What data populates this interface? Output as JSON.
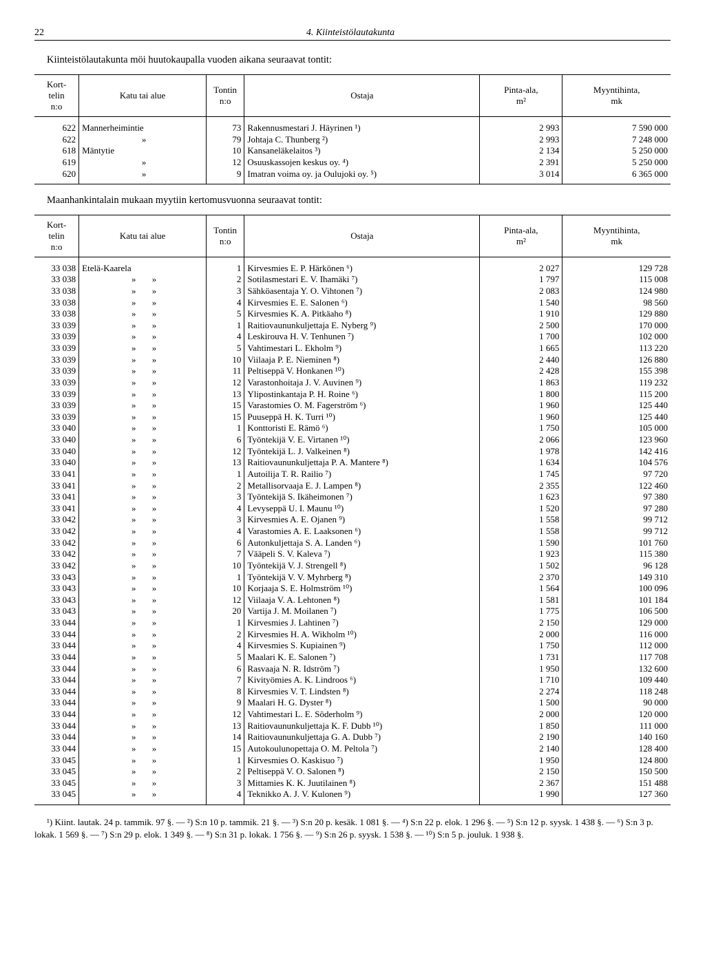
{
  "page_number": "22",
  "header_title": "4. Kiinteistölautakunta",
  "section1_intro": "Kiinteistölautakunta möi huutokaupalla vuoden aikana seuraavat tontit:",
  "table_headers": {
    "korttelin": "Kort-\ntelin\nn:o",
    "katu": "Katu tai alue",
    "tontin": "Tontin\nn:o",
    "ostaja": "Ostaja",
    "pinta": "Pinta-ala,\nm²",
    "hinta": "Myyntihinta,\nmk"
  },
  "table1_rows": [
    {
      "k": "622",
      "katu": "Mannerheimintie",
      "t": "73",
      "o": "Rakennusmestari J. Häyrinen ¹)",
      "p": "2 993",
      "h": "7 590 000"
    },
    {
      "k": "622",
      "katu": "»",
      "t": "79",
      "o": "Johtaja C. Thunberg ²)",
      "p": "2 993",
      "h": "7 248 000"
    },
    {
      "k": "618",
      "katu": "Mäntytie",
      "t": "10",
      "o": "Kansaneläkelaitos ³)",
      "p": "2 134",
      "h": "5 250 000"
    },
    {
      "k": "619",
      "katu": "»",
      "t": "12",
      "o": "Osuuskassojen keskus oy. ⁴)",
      "p": "2 391",
      "h": "5 250 000"
    },
    {
      "k": "620",
      "katu": "»",
      "t": "9",
      "o": "Imatran voima oy. ja Oulujoki oy. ⁵)",
      "p": "3 014",
      "h": "6 365 000"
    }
  ],
  "section2_intro": "Maanhankintalain mukaan myytiin kertomusvuonna seuraavat tontit:",
  "table2_rows": [
    {
      "k": "33 038",
      "katu": "Etelä-Kaarela",
      "t": "1",
      "o": "Kirvesmies E. P. Härkönen ⁶)",
      "p": "2 027",
      "h": "129 728"
    },
    {
      "k": "33 038",
      "katu": "»   »",
      "t": "2",
      "o": "Sotilasmestari E. V. Ihamäki ⁷)",
      "p": "1 797",
      "h": "115 008"
    },
    {
      "k": "33 038",
      "katu": "»   »",
      "t": "3",
      "o": "Sähköasentaja Y. O. Vihtonen ⁷)",
      "p": "2 083",
      "h": "124 980"
    },
    {
      "k": "33 038",
      "katu": "»   »",
      "t": "4",
      "o": "Kirvesmies E. E. Salonen ⁶)",
      "p": "1 540",
      "h": "98 560"
    },
    {
      "k": "33 038",
      "katu": "»   »",
      "t": "5",
      "o": "Kirvesmies K. A. Pitkäaho ⁸)",
      "p": "1 910",
      "h": "129 880"
    },
    {
      "k": "33 039",
      "katu": "»   »",
      "t": "1",
      "o": "Raitiovaununkuljettaja E. Nyberg ⁹)",
      "p": "2 500",
      "h": "170 000"
    },
    {
      "k": "33 039",
      "katu": "»   »",
      "t": "4",
      "o": "Leskirouva H. V. Tenhunen ⁷)",
      "p": "1 700",
      "h": "102 000"
    },
    {
      "k": "33 039",
      "katu": "»   »",
      "t": "5",
      "o": "Vahtimestari L. Ekholm ⁹)",
      "p": "1 665",
      "h": "113 220"
    },
    {
      "k": "33 039",
      "katu": "»   »",
      "t": "10",
      "o": "Viilaaja P. E. Nieminen ⁸)",
      "p": "2 440",
      "h": "126 880"
    },
    {
      "k": "33 039",
      "katu": "»   »",
      "t": "11",
      "o": "Peltiseppä V. Honkanen ¹⁰)",
      "p": "2 428",
      "h": "155 398"
    },
    {
      "k": "33 039",
      "katu": "»   »",
      "t": "12",
      "o": "Varastonhoitaja J. V. Auvinen ⁹)",
      "p": "1 863",
      "h": "119 232"
    },
    {
      "k": "33 039",
      "katu": "»   »",
      "t": "13",
      "o": "Ylipostinkantaja P. H. Roine ⁶)",
      "p": "1 800",
      "h": "115 200"
    },
    {
      "k": "33 039",
      "katu": "»   »",
      "t": "15",
      "o": "Varastomies O. M. Fagerström ⁶)",
      "p": "1 960",
      "h": "125 440"
    },
    {
      "k": "33 039",
      "katu": "»   »",
      "t": "15",
      "o": "Puuseppä H. K. Turri ¹⁰)",
      "p": "1 960",
      "h": "125 440"
    },
    {
      "k": "33 040",
      "katu": "»   »",
      "t": "1",
      "o": "Konttoristi E. Rämö ⁶)",
      "p": "1 750",
      "h": "105 000"
    },
    {
      "k": "33 040",
      "katu": "»   »",
      "t": "6",
      "o": "Työntekijä V. E. Virtanen ¹⁰)",
      "p": "2 066",
      "h": "123 960"
    },
    {
      "k": "33 040",
      "katu": "»   »",
      "t": "12",
      "o": "Työntekijä L. J. Valkeinen ⁸)",
      "p": "1 978",
      "h": "142 416"
    },
    {
      "k": "33 040",
      "katu": "»   »",
      "t": "13",
      "o": "Raitiovaununkuljettaja P. A. Mantere ⁸)",
      "p": "1 634",
      "h": "104 576"
    },
    {
      "k": "33 041",
      "katu": "»   »",
      "t": "1",
      "o": "Autoilija T. R. Railio ⁷)",
      "p": "1 745",
      "h": "97 720"
    },
    {
      "k": "33 041",
      "katu": "»   »",
      "t": "2",
      "o": "Metallisorvaaja E. J. Lampen ⁸)",
      "p": "2 355",
      "h": "122 460"
    },
    {
      "k": "33 041",
      "katu": "»   »",
      "t": "3",
      "o": "Työntekijä S. Ikäheimonen ⁷)",
      "p": "1 623",
      "h": "97 380"
    },
    {
      "k": "33 041",
      "katu": "»   »",
      "t": "4",
      "o": "Levyseppä U. I. Maunu ¹⁰)",
      "p": "1 520",
      "h": "97 280"
    },
    {
      "k": "33 042",
      "katu": "»   »",
      "t": "3",
      "o": "Kirvesmies A. E. Ojanen ⁹)",
      "p": "1 558",
      "h": "99 712"
    },
    {
      "k": "33 042",
      "katu": "»   »",
      "t": "4",
      "o": "Varastomies A. E. Laaksonen ⁶)",
      "p": "1 558",
      "h": "99 712"
    },
    {
      "k": "33 042",
      "katu": "»   »",
      "t": "6",
      "o": "Autonkuljettaja S. A. Landen ⁶)",
      "p": "1 590",
      "h": "101 760"
    },
    {
      "k": "33 042",
      "katu": "»   »",
      "t": "7",
      "o": "Vääpeli S. V. Kaleva ⁷)",
      "p": "1 923",
      "h": "115 380"
    },
    {
      "k": "33 042",
      "katu": "»   »",
      "t": "10",
      "o": "Työntekijä V. J. Strengell ⁸)",
      "p": "1 502",
      "h": "96 128"
    },
    {
      "k": "33 043",
      "katu": "»   »",
      "t": "1",
      "o": "Työntekijä V. V. Myhrberg ⁸)",
      "p": "2 370",
      "h": "149 310"
    },
    {
      "k": "33 043",
      "katu": "»   »",
      "t": "10",
      "o": "Korjaaja S. E. Holmström ¹⁰)",
      "p": "1 564",
      "h": "100 096"
    },
    {
      "k": "33 043",
      "katu": "»   »",
      "t": "12",
      "o": "Viilaaja V. A. Lehtonen ⁸)",
      "p": "1 581",
      "h": "101 184"
    },
    {
      "k": "33 043",
      "katu": "»   »",
      "t": "20",
      "o": "Vartija J. M. Moilanen ⁷)",
      "p": "1 775",
      "h": "106 500"
    },
    {
      "k": "33 044",
      "katu": "»   »",
      "t": "1",
      "o": "Kirvesmies J. Lahtinen ⁷)",
      "p": "2 150",
      "h": "129 000"
    },
    {
      "k": "33 044",
      "katu": "»   »",
      "t": "2",
      "o": "Kirvesmies H. A. Wikholm ¹⁰)",
      "p": "2 000",
      "h": "116 000"
    },
    {
      "k": "33 044",
      "katu": "»   »",
      "t": "4",
      "o": "Kirvesmies S. Kupiainen ⁹)",
      "p": "1 750",
      "h": "112 000"
    },
    {
      "k": "33 044",
      "katu": "»   »",
      "t": "5",
      "o": "Maalari K. E. Salonen ⁷)",
      "p": "1 731",
      "h": "117 708"
    },
    {
      "k": "33 044",
      "katu": "»   »",
      "t": "6",
      "o": "Rasvaaja N. R. Idström ⁷)",
      "p": "1 950",
      "h": "132 600"
    },
    {
      "k": "33 044",
      "katu": "»   »",
      "t": "7",
      "o": "Kivityömies A. K. Lindroos ⁶)",
      "p": "1 710",
      "h": "109 440"
    },
    {
      "k": "33 044",
      "katu": "»   »",
      "t": "8",
      "o": "Kirvesmies V. T. Lindsten ⁸)",
      "p": "2 274",
      "h": "118 248"
    },
    {
      "k": "33 044",
      "katu": "»   »",
      "t": "9",
      "o": "Maalari H. G. Dyster ⁸)",
      "p": "1 500",
      "h": "90 000"
    },
    {
      "k": "33 044",
      "katu": "»   »",
      "t": "12",
      "o": "Vahtimestari L. E. Söderholm ⁹)",
      "p": "2 000",
      "h": "120 000"
    },
    {
      "k": "33 044",
      "katu": "»   »",
      "t": "13",
      "o": "Raitiovaununkuljettaja K. F. Dubb ¹⁰)",
      "p": "1 850",
      "h": "111 000"
    },
    {
      "k": "33 044",
      "katu": "»   »",
      "t": "14",
      "o": "Raitiovaununkuljettaja G. A. Dubb ⁷)",
      "p": "2 190",
      "h": "140 160"
    },
    {
      "k": "33 044",
      "katu": "»   »",
      "t": "15",
      "o": "Autokoulunopettaja O. M. Peltola ⁷)",
      "p": "2 140",
      "h": "128 400"
    },
    {
      "k": "33 045",
      "katu": "»   »",
      "t": "1",
      "o": "Kirvesmies O. Kaskisuo ⁷)",
      "p": "1 950",
      "h": "124 800"
    },
    {
      "k": "33 045",
      "katu": "»   »",
      "t": "2",
      "o": "Peltiseppä V. O. Salonen ⁸)",
      "p": "2 150",
      "h": "150 500"
    },
    {
      "k": "33 045",
      "katu": "»   »",
      "t": "3",
      "o": "Mittamies K. K. Juutilainen ⁸)",
      "p": "2 367",
      "h": "151 488"
    },
    {
      "k": "33 045",
      "katu": "»   »",
      "t": "4",
      "o": "Teknikko A. J. V. Kulonen ⁹)",
      "p": "1 990",
      "h": "127 360"
    }
  ],
  "footnotes": "¹) Kiint. lautak. 24 p. tammik. 97 §. — ²) S:n 10 p. tammik. 21 §. — ³) S:n 20 p. kesäk. 1 081 §. — ⁴) S:n 22 p. elok. 1 296 §. — ⁵) S:n 12 p. syysk. 1 438 §. — ⁶) S:n 3 p. lokak. 1 569 §. — ⁷) S:n 29 p. elok. 1 349 §. — ⁸) S:n 31 p. lokak. 1 756 §. — ⁹) S:n 26 p. syysk. 1 538 §. — ¹⁰) S:n 5 p. jouluk. 1 938 §.",
  "col_widths": {
    "k": "7%",
    "katu": "20%",
    "t": "6%",
    "o": "37%",
    "p": "13%",
    "h": "17%"
  }
}
